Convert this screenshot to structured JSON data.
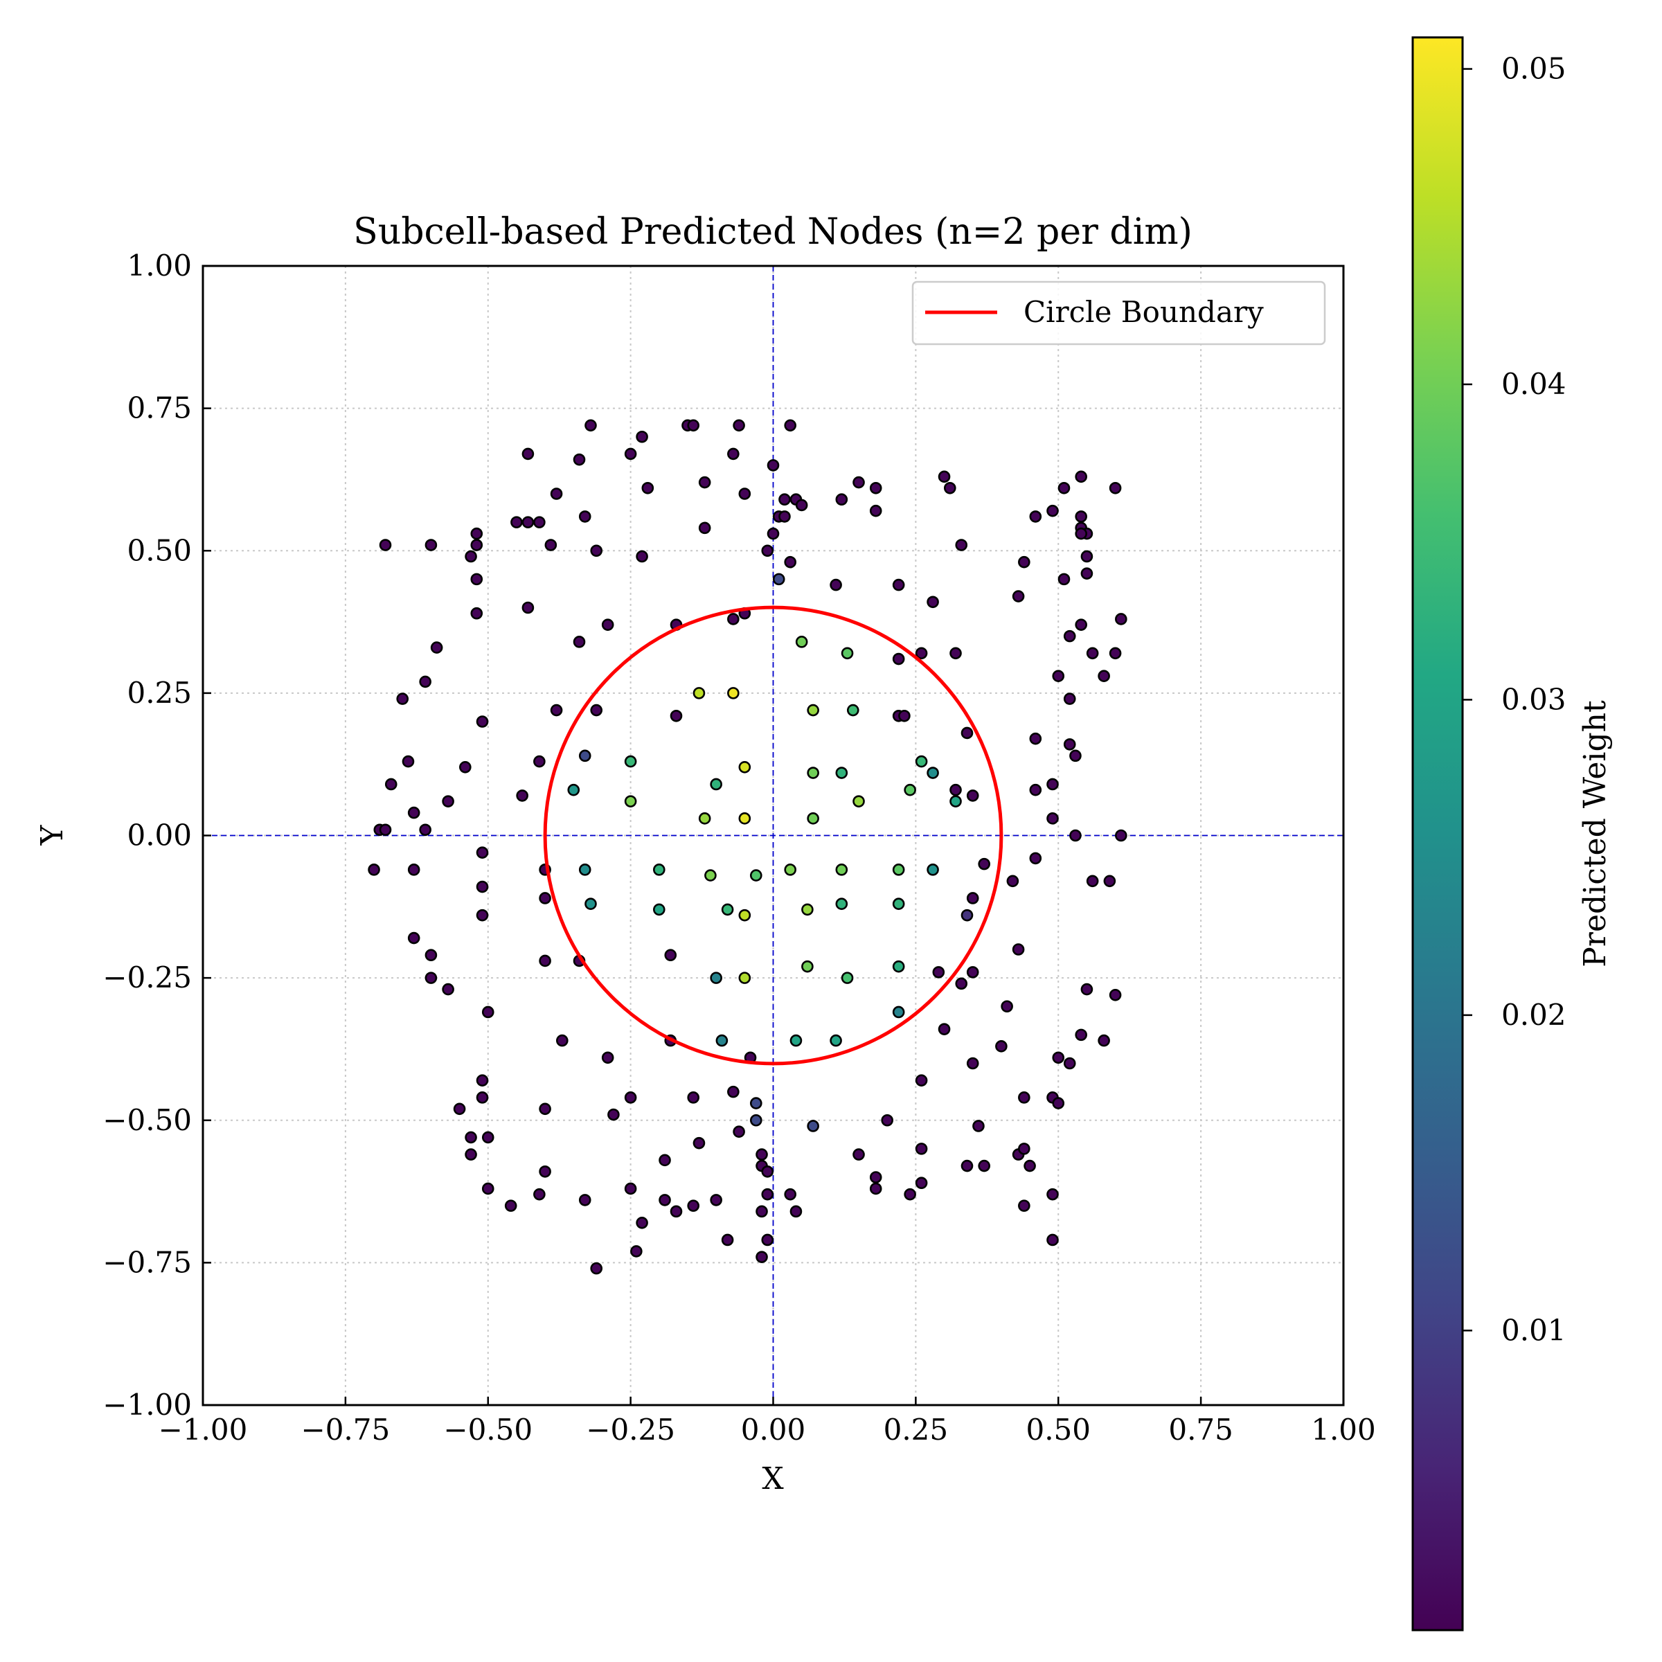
{
  "chart_data": {
    "type": "scatter",
    "title": "Subcell-based Predicted Nodes (n=2 per dim)",
    "xlabel": "X",
    "ylabel": "Y",
    "xlim": [
      -1.0,
      1.0
    ],
    "ylim": [
      -1.0,
      1.0
    ],
    "xticks": [
      "−1.00",
      "−0.75",
      "−0.50",
      "−0.25",
      "0.00",
      "0.25",
      "0.50",
      "0.75",
      "1.00"
    ],
    "yticks": [
      "1.00",
      "0.75",
      "0.50",
      "0.25",
      "0.00",
      "−0.25",
      "−0.50",
      "−0.75",
      "−1.00"
    ],
    "grid": true,
    "legend": {
      "placement": "top-right",
      "entries": [
        {
          "label": "Circle Boundary",
          "color": "#ff0000"
        }
      ]
    },
    "circle": {
      "center": [
        0,
        0
      ],
      "radius": 0.4,
      "color": "#ff0000"
    },
    "colorbar": {
      "label": "Predicted Weight",
      "colormap": "viridis",
      "range": [
        0.0005,
        0.051
      ],
      "ticks": [
        "0.01",
        "0.02",
        "0.03",
        "0.04",
        "0.05"
      ],
      "tick_values": [
        0.01,
        0.02,
        0.03,
        0.04,
        0.05
      ]
    },
    "points": [
      [
        -0.32,
        0.72,
        0.001
      ],
      [
        -0.23,
        0.7,
        0.001
      ],
      [
        -0.15,
        0.72,
        0.001
      ],
      [
        -0.14,
        0.72,
        0.001
      ],
      [
        -0.06,
        0.72,
        0.001
      ],
      [
        0.03,
        0.72,
        0.001
      ],
      [
        -0.43,
        0.67,
        0.001
      ],
      [
        -0.34,
        0.66,
        0.001
      ],
      [
        -0.25,
        0.67,
        0.001
      ],
      [
        -0.07,
        0.67,
        0.001
      ],
      [
        0.0,
        0.65,
        0.001
      ],
      [
        -0.12,
        0.62,
        0.001
      ],
      [
        -0.38,
        0.6,
        0.001
      ],
      [
        -0.22,
        0.61,
        0.001
      ],
      [
        -0.05,
        0.6,
        0.001
      ],
      [
        0.02,
        0.59,
        0.001
      ],
      [
        0.04,
        0.59,
        0.001
      ],
      [
        0.05,
        0.58,
        0.001
      ],
      [
        0.12,
        0.59,
        0.001
      ],
      [
        0.15,
        0.62,
        0.001
      ],
      [
        0.18,
        0.61,
        0.001
      ],
      [
        0.18,
        0.57,
        0.001
      ],
      [
        0.3,
        0.63,
        0.001
      ],
      [
        0.31,
        0.61,
        0.001
      ],
      [
        -0.45,
        0.55,
        0.001
      ],
      [
        -0.43,
        0.55,
        0.001
      ],
      [
        -0.41,
        0.55,
        0.001
      ],
      [
        -0.33,
        0.56,
        0.001
      ],
      [
        -0.12,
        0.54,
        0.001
      ],
      [
        -0.52,
        0.53,
        0.001
      ],
      [
        -0.52,
        0.51,
        0.001
      ],
      [
        -0.68,
        0.51,
        0.001
      ],
      [
        -0.6,
        0.51,
        0.001
      ],
      [
        -0.53,
        0.49,
        0.001
      ],
      [
        -0.39,
        0.51,
        0.001
      ],
      [
        -0.31,
        0.5,
        0.001
      ],
      [
        -0.23,
        0.49,
        0.001
      ],
      [
        0.0,
        0.53,
        0.001
      ],
      [
        -0.01,
        0.5,
        0.001
      ],
      [
        0.01,
        0.56,
        0.001
      ],
      [
        0.02,
        0.56,
        0.001
      ],
      [
        0.03,
        0.48,
        0.001
      ],
      [
        0.01,
        0.45,
        0.012
      ],
      [
        0.11,
        0.44,
        0.001
      ],
      [
        0.22,
        0.44,
        0.001
      ],
      [
        0.33,
        0.51,
        0.001
      ],
      [
        0.44,
        0.48,
        0.001
      ],
      [
        0.46,
        0.56,
        0.001
      ],
      [
        0.49,
        0.57,
        0.001
      ],
      [
        0.51,
        0.61,
        0.001
      ],
      [
        0.54,
        0.63,
        0.001
      ],
      [
        0.6,
        0.61,
        0.001
      ],
      [
        0.54,
        0.56,
        0.001
      ],
      [
        0.54,
        0.54,
        0.001
      ],
      [
        0.55,
        0.53,
        0.001
      ],
      [
        0.54,
        0.53,
        0.001
      ],
      [
        0.55,
        0.49,
        0.001
      ],
      [
        0.55,
        0.46,
        0.001
      ],
      [
        0.51,
        0.45,
        0.001
      ],
      [
        0.43,
        0.42,
        0.001
      ],
      [
        -0.52,
        0.45,
        0.001
      ],
      [
        -0.52,
        0.39,
        0.001
      ],
      [
        -0.43,
        0.4,
        0.001
      ],
      [
        -0.59,
        0.33,
        0.001
      ],
      [
        -0.34,
        0.34,
        0.001
      ],
      [
        -0.29,
        0.37,
        0.001
      ],
      [
        -0.17,
        0.37,
        0.001
      ],
      [
        -0.07,
        0.38,
        0.001
      ],
      [
        -0.05,
        0.39,
        0.001
      ],
      [
        0.28,
        0.41,
        0.001
      ],
      [
        0.26,
        0.32,
        0.001
      ],
      [
        0.32,
        0.32,
        0.001
      ],
      [
        0.22,
        0.31,
        0.001
      ],
      [
        0.54,
        0.37,
        0.001
      ],
      [
        0.52,
        0.35,
        0.001
      ],
      [
        0.61,
        0.38,
        0.001
      ],
      [
        0.56,
        0.32,
        0.001
      ],
      [
        0.6,
        0.32,
        0.001
      ],
      [
        0.5,
        0.28,
        0.001
      ],
      [
        0.58,
        0.28,
        0.001
      ],
      [
        0.52,
        0.24,
        0.001
      ],
      [
        -0.61,
        0.27,
        0.001
      ],
      [
        -0.65,
        0.24,
        0.001
      ],
      [
        -0.38,
        0.22,
        0.001
      ],
      [
        -0.31,
        0.22,
        0.001
      ],
      [
        -0.17,
        0.21,
        0.001
      ],
      [
        -0.51,
        0.2,
        0.001
      ],
      [
        0.22,
        0.21,
        0.001
      ],
      [
        0.23,
        0.21,
        0.001
      ],
      [
        0.34,
        0.18,
        0.001
      ],
      [
        0.46,
        0.17,
        0.001
      ],
      [
        0.52,
        0.16,
        0.001
      ],
      [
        0.53,
        0.14,
        0.001
      ],
      [
        -0.64,
        0.13,
        0.001
      ],
      [
        -0.41,
        0.13,
        0.001
      ],
      [
        -0.54,
        0.12,
        0.001
      ],
      [
        -0.33,
        0.14,
        0.012
      ],
      [
        -0.67,
        0.09,
        0.001
      ],
      [
        -0.44,
        0.07,
        0.001
      ],
      [
        -0.57,
        0.06,
        0.001
      ],
      [
        -0.63,
        0.04,
        0.001
      ],
      [
        -0.69,
        0.01,
        0.001
      ],
      [
        -0.68,
        0.01,
        0.001
      ],
      [
        -0.61,
        0.01,
        0.001
      ],
      [
        0.32,
        0.08,
        0.001
      ],
      [
        0.35,
        0.07,
        0.001
      ],
      [
        0.46,
        0.08,
        0.001
      ],
      [
        0.49,
        0.09,
        0.001
      ],
      [
        0.49,
        0.03,
        0.001
      ],
      [
        0.53,
        0.0,
        0.001
      ],
      [
        0.61,
        0.0,
        0.001
      ],
      [
        -0.7,
        -0.06,
        0.001
      ],
      [
        -0.63,
        -0.06,
        0.001
      ],
      [
        -0.51,
        -0.03,
        0.001
      ],
      [
        -0.51,
        -0.09,
        0.001
      ],
      [
        -0.51,
        -0.14,
        0.001
      ],
      [
        -0.4,
        -0.06,
        0.001
      ],
      [
        -0.4,
        -0.11,
        0.001
      ],
      [
        -0.63,
        -0.18,
        0.001
      ],
      [
        -0.6,
        -0.21,
        0.001
      ],
      [
        -0.6,
        -0.25,
        0.001
      ],
      [
        -0.57,
        -0.27,
        0.001
      ],
      [
        -0.4,
        -0.22,
        0.001
      ],
      [
        -0.34,
        -0.22,
        0.001
      ],
      [
        -0.5,
        -0.31,
        0.001
      ],
      [
        0.37,
        -0.05,
        0.001
      ],
      [
        0.42,
        -0.08,
        0.001
      ],
      [
        0.46,
        -0.04,
        0.001
      ],
      [
        0.35,
        -0.11,
        0.001
      ],
      [
        0.34,
        -0.14,
        0.008
      ],
      [
        0.43,
        -0.2,
        0.001
      ],
      [
        0.35,
        -0.24,
        0.001
      ],
      [
        0.33,
        -0.26,
        0.001
      ],
      [
        0.29,
        -0.24,
        0.001
      ],
      [
        0.56,
        -0.08,
        0.001
      ],
      [
        0.59,
        -0.08,
        0.001
      ],
      [
        0.55,
        -0.27,
        0.001
      ],
      [
        0.6,
        -0.28,
        0.001
      ],
      [
        0.41,
        -0.3,
        0.001
      ],
      [
        0.3,
        -0.34,
        0.001
      ],
      [
        0.54,
        -0.35,
        0.001
      ],
      [
        0.58,
        -0.36,
        0.001
      ],
      [
        0.4,
        -0.37,
        0.001
      ],
      [
        0.35,
        -0.4,
        0.001
      ],
      [
        0.5,
        -0.39,
        0.001
      ],
      [
        0.52,
        -0.4,
        0.001
      ],
      [
        -0.37,
        -0.36,
        0.001
      ],
      [
        -0.29,
        -0.39,
        0.001
      ],
      [
        -0.18,
        -0.36,
        0.001
      ],
      [
        -0.04,
        -0.39,
        0.001
      ],
      [
        -0.51,
        -0.43,
        0.001
      ],
      [
        -0.51,
        -0.46,
        0.001
      ],
      [
        -0.55,
        -0.48,
        0.001
      ],
      [
        -0.4,
        -0.48,
        0.001
      ],
      [
        -0.28,
        -0.49,
        0.001
      ],
      [
        -0.25,
        -0.46,
        0.001
      ],
      [
        -0.14,
        -0.46,
        0.001
      ],
      [
        -0.07,
        -0.45,
        0.001
      ],
      [
        -0.03,
        -0.47,
        0.012
      ],
      [
        -0.03,
        -0.5,
        0.012
      ],
      [
        -0.06,
        -0.52,
        0.001
      ],
      [
        0.07,
        -0.51,
        0.012
      ],
      [
        0.2,
        -0.5,
        0.001
      ],
      [
        0.26,
        -0.43,
        0.001
      ],
      [
        0.36,
        -0.51,
        0.001
      ],
      [
        0.44,
        -0.46,
        0.001
      ],
      [
        0.49,
        -0.46,
        0.001
      ],
      [
        0.5,
        -0.47,
        0.001
      ],
      [
        -0.53,
        -0.53,
        0.001
      ],
      [
        -0.5,
        -0.53,
        0.001
      ],
      [
        -0.53,
        -0.56,
        0.001
      ],
      [
        -0.4,
        -0.59,
        0.001
      ],
      [
        -0.5,
        -0.62,
        0.001
      ],
      [
        -0.41,
        -0.63,
        0.001
      ],
      [
        -0.46,
        -0.65,
        0.001
      ],
      [
        -0.33,
        -0.64,
        0.001
      ],
      [
        -0.25,
        -0.62,
        0.001
      ],
      [
        -0.23,
        -0.68,
        0.001
      ],
      [
        -0.19,
        -0.57,
        0.001
      ],
      [
        -0.13,
        -0.54,
        0.001
      ],
      [
        -0.19,
        -0.64,
        0.001
      ],
      [
        -0.17,
        -0.66,
        0.001
      ],
      [
        -0.14,
        -0.65,
        0.001
      ],
      [
        -0.1,
        -0.64,
        0.001
      ],
      [
        -0.02,
        -0.56,
        0.001
      ],
      [
        -0.02,
        -0.58,
        0.001
      ],
      [
        -0.01,
        -0.59,
        0.001
      ],
      [
        -0.01,
        -0.63,
        0.001
      ],
      [
        -0.02,
        -0.66,
        0.001
      ],
      [
        -0.08,
        -0.71,
        0.001
      ],
      [
        -0.01,
        -0.71,
        0.001
      ],
      [
        -0.02,
        -0.74,
        0.001
      ],
      [
        -0.24,
        -0.73,
        0.001
      ],
      [
        -0.31,
        -0.76,
        0.001
      ],
      [
        0.03,
        -0.63,
        0.001
      ],
      [
        0.04,
        -0.66,
        0.001
      ],
      [
        0.15,
        -0.56,
        0.001
      ],
      [
        0.18,
        -0.6,
        0.001
      ],
      [
        0.18,
        -0.62,
        0.001
      ],
      [
        0.26,
        -0.55,
        0.001
      ],
      [
        0.24,
        -0.63,
        0.001
      ],
      [
        0.26,
        -0.61,
        0.001
      ],
      [
        0.34,
        -0.58,
        0.001
      ],
      [
        0.37,
        -0.58,
        0.001
      ],
      [
        0.43,
        -0.56,
        0.001
      ],
      [
        0.44,
        -0.55,
        0.001
      ],
      [
        0.45,
        -0.58,
        0.001
      ],
      [
        0.44,
        -0.65,
        0.001
      ],
      [
        0.49,
        -0.63,
        0.001
      ],
      [
        0.49,
        -0.71,
        0.001
      ],
      [
        0.05,
        0.34,
        0.04
      ],
      [
        0.13,
        0.32,
        0.038
      ],
      [
        -0.13,
        0.25,
        0.046
      ],
      [
        -0.07,
        0.25,
        0.05
      ],
      [
        0.07,
        0.22,
        0.043
      ],
      [
        0.14,
        0.22,
        0.035
      ],
      [
        -0.25,
        0.13,
        0.034
      ],
      [
        -0.05,
        0.12,
        0.048
      ],
      [
        0.07,
        0.11,
        0.04
      ],
      [
        0.12,
        0.11,
        0.033
      ],
      [
        0.26,
        0.13,
        0.034
      ],
      [
        0.28,
        0.11,
        0.025
      ],
      [
        -0.35,
        0.08,
        0.027
      ],
      [
        -0.25,
        0.06,
        0.041
      ],
      [
        -0.1,
        0.09,
        0.033
      ],
      [
        0.15,
        0.06,
        0.043
      ],
      [
        0.24,
        0.08,
        0.038
      ],
      [
        0.32,
        0.06,
        0.03
      ],
      [
        -0.12,
        0.03,
        0.043
      ],
      [
        -0.05,
        0.03,
        0.049
      ],
      [
        0.07,
        0.03,
        0.04
      ],
      [
        -0.33,
        -0.06,
        0.025
      ],
      [
        -0.2,
        -0.06,
        0.033
      ],
      [
        -0.11,
        -0.07,
        0.041
      ],
      [
        -0.03,
        -0.07,
        0.037
      ],
      [
        0.03,
        -0.06,
        0.041
      ],
      [
        0.12,
        -0.06,
        0.04
      ],
      [
        0.22,
        -0.06,
        0.038
      ],
      [
        0.28,
        -0.06,
        0.026
      ],
      [
        -0.32,
        -0.12,
        0.026
      ],
      [
        -0.2,
        -0.13,
        0.03
      ],
      [
        -0.08,
        -0.13,
        0.034
      ],
      [
        -0.05,
        -0.14,
        0.046
      ],
      [
        0.06,
        -0.13,
        0.043
      ],
      [
        0.12,
        -0.12,
        0.033
      ],
      [
        0.22,
        -0.12,
        0.033
      ],
      [
        -0.18,
        -0.21,
        0.001
      ],
      [
        -0.1,
        -0.25,
        0.023
      ],
      [
        -0.05,
        -0.25,
        0.045
      ],
      [
        0.06,
        -0.23,
        0.04
      ],
      [
        0.13,
        -0.25,
        0.036
      ],
      [
        0.22,
        -0.23,
        0.032
      ],
      [
        0.22,
        -0.31,
        0.023
      ],
      [
        -0.09,
        -0.36,
        0.023
      ],
      [
        0.04,
        -0.36,
        0.03
      ],
      [
        0.11,
        -0.36,
        0.03
      ]
    ]
  }
}
